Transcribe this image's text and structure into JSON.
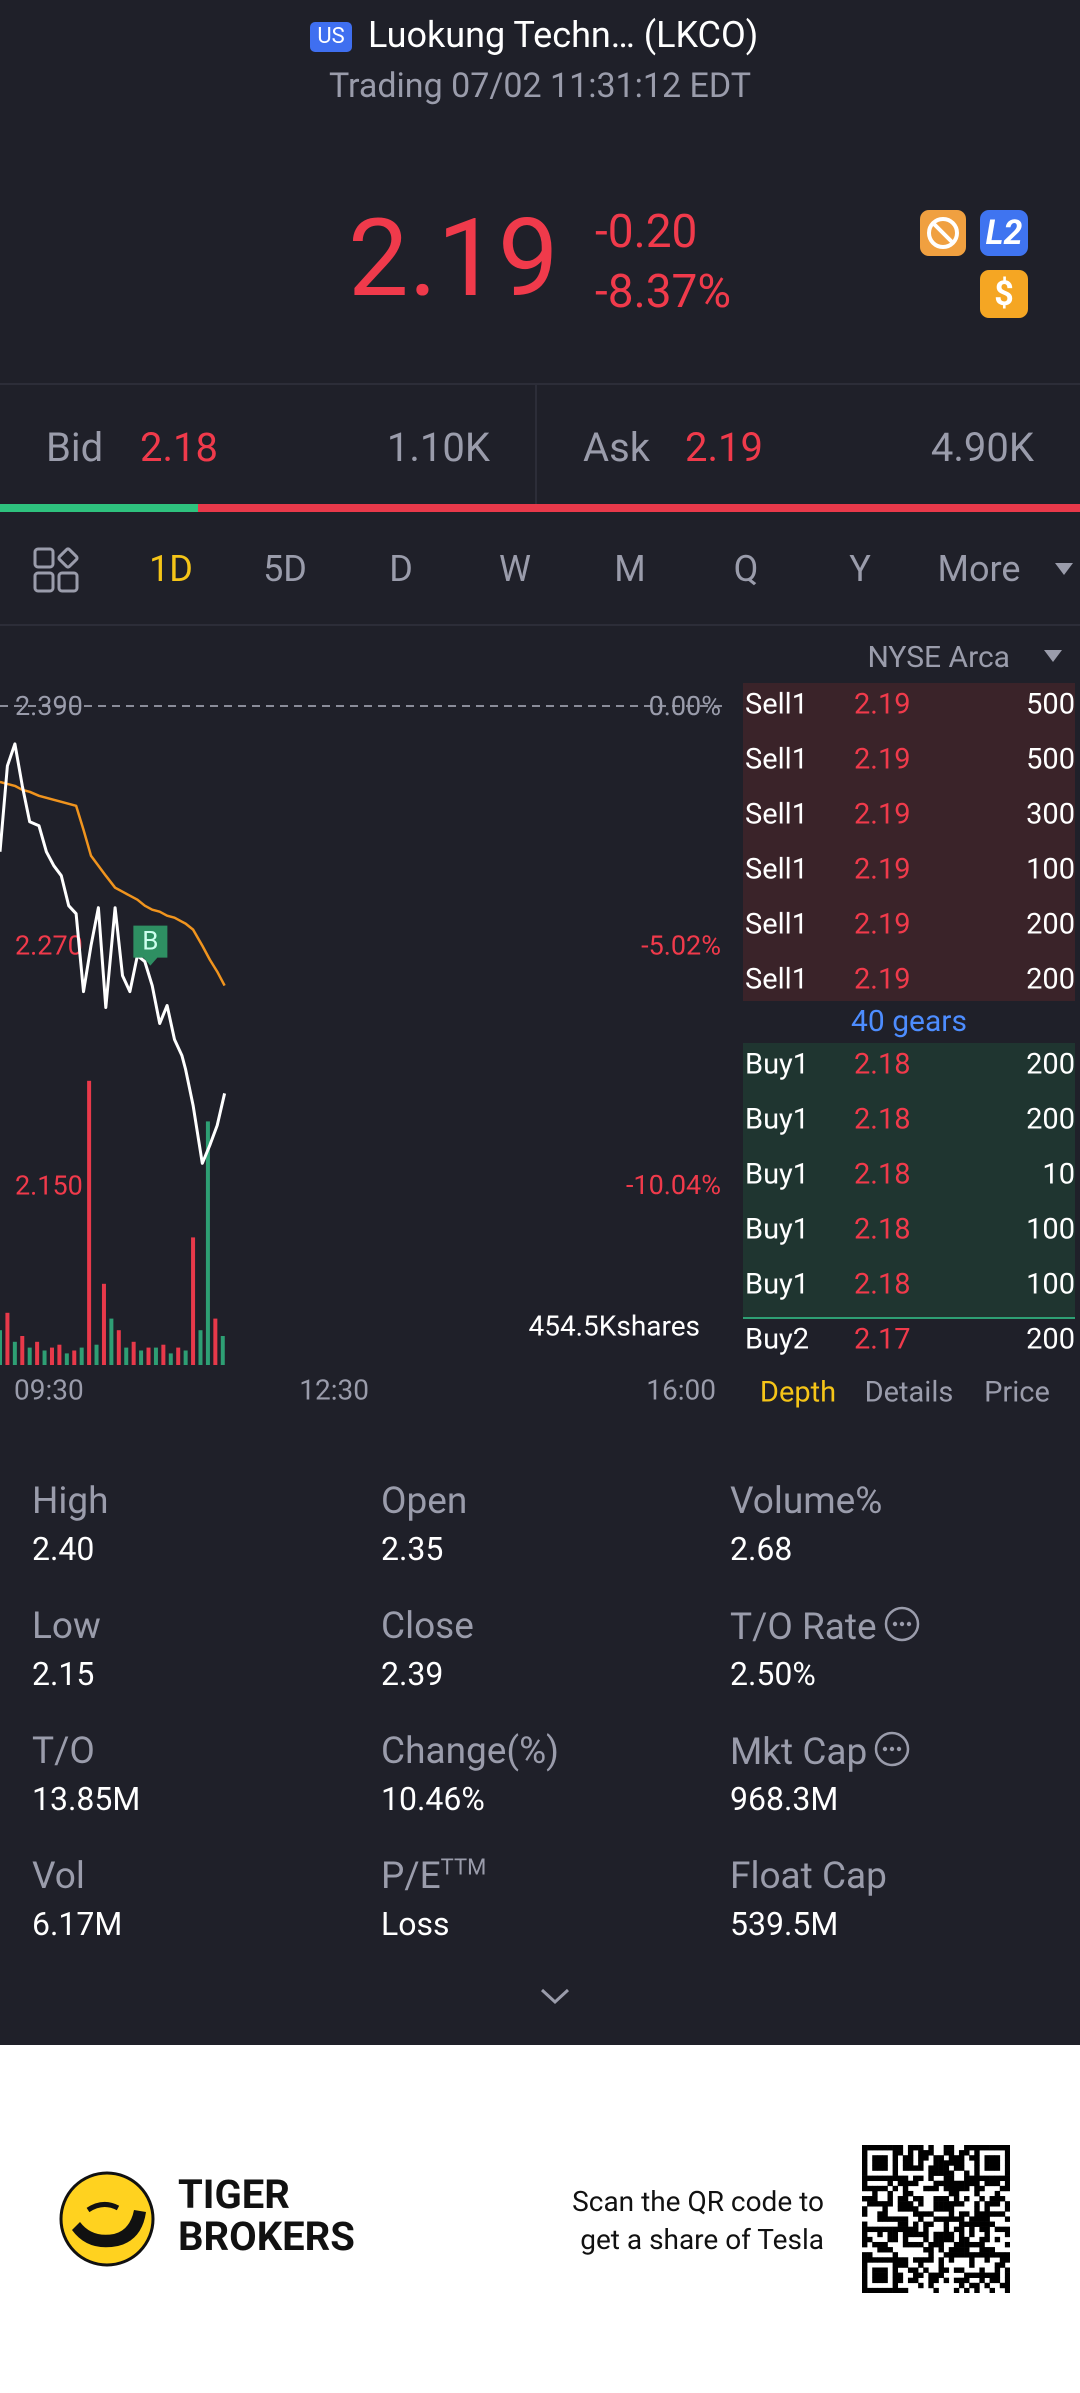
{
  "header": {
    "badge": "US",
    "title": "Luokung Techn… (LKCO)",
    "status": "Trading 07/02 11:31:12 EDT"
  },
  "quote": {
    "price": "2.19",
    "change": "-0.20",
    "change_pct": "-8.37%",
    "level_badge": "L2",
    "currency_badge": "$"
  },
  "bid_ask": {
    "bid_label": "Bid",
    "bid": "2.18",
    "bid_size": "1.10K",
    "ask_label": "Ask",
    "ask": "2.19",
    "ask_size": "4.90K"
  },
  "tabs": {
    "items": [
      "1D",
      "5D",
      "D",
      "W",
      "M",
      "Q",
      "Y",
      "More"
    ],
    "active": 0
  },
  "exchange": "NYSE Arca",
  "chart_data": {
    "type": "line",
    "x": [
      0,
      4,
      8,
      12,
      16,
      21,
      25,
      29,
      33,
      37,
      41,
      45,
      49,
      53,
      57,
      62,
      66,
      70,
      74,
      78,
      82,
      86,
      90,
      94,
      98,
      100,
      104,
      109,
      113,
      117,
      121
    ],
    "series": [
      {
        "color": "#ffffff",
        "values": [
          2.317,
          2.36,
          2.371,
          2.35,
          2.332,
          2.33,
          2.317,
          2.31,
          2.305,
          2.29,
          2.286,
          2.247,
          2.27,
          2.289,
          2.239,
          2.289,
          2.255,
          2.247,
          2.265,
          2.262,
          2.25,
          2.231,
          2.24,
          2.223,
          2.215,
          2.208,
          2.19,
          2.161,
          2.17,
          2.18,
          2.196
        ]
      },
      {
        "color": "#f0941e",
        "values": [
          2.352,
          2.351,
          2.35,
          2.348,
          2.347,
          2.345,
          2.344,
          2.343,
          2.342,
          2.341,
          2.34,
          2.328,
          2.315,
          2.31,
          2.305,
          2.299,
          2.297,
          2.295,
          2.293,
          2.29,
          2.288,
          2.287,
          2.285,
          2.284,
          2.282,
          2.281,
          2.278,
          2.27,
          2.263,
          2.257,
          2.25
        ]
      }
    ],
    "xlim": [
      0,
      390
    ],
    "xticks": [
      {
        "value": 0,
        "label": "09:30"
      },
      {
        "value": 180,
        "label": "12:30"
      },
      {
        "value": 390,
        "label": "16:00"
      }
    ],
    "ylim": [
      2.06,
      2.4
    ],
    "yticks": [
      {
        "value": 2.39,
        "label": "2.390"
      },
      {
        "value": 2.27,
        "label": "2.270"
      },
      {
        "value": 2.15,
        "label": "2.150"
      }
    ],
    "y2lim": [
      -13.81,
      0.42
    ],
    "y2ticks": [
      {
        "value": 0,
        "label": "0.00%"
      },
      {
        "value": -5.02,
        "label": "-5.02%"
      },
      {
        "value": -10.04,
        "label": "-10.04%"
      }
    ],
    "markers": [
      {
        "label": "B",
        "x": 81,
        "y": 2.27
      }
    ],
    "volume": {
      "label": "454.5Kshares",
      "ylim": [
        0,
        500000
      ],
      "x": [
        0,
        4,
        8,
        12,
        16,
        20,
        24,
        28,
        32,
        36,
        40,
        44,
        48,
        52,
        56,
        60,
        64,
        68,
        72,
        76,
        80,
        84,
        88,
        92,
        96,
        100,
        104,
        108,
        112,
        116,
        120
      ],
      "series": [
        {
          "color": "#2e9f74",
          "values": [
            60000,
            null,
            40000,
            null,
            30000,
            null,
            25000,
            null,
            null,
            20000,
            null,
            30000,
            null,
            35000,
            null,
            80000,
            null,
            30000,
            null,
            25000,
            null,
            30000,
            null,
            20000,
            null,
            25000,
            null,
            60000,
            420000,
            null,
            50000
          ]
        },
        {
          "color": "#e8394a",
          "values": [
            null,
            90000,
            null,
            50000,
            null,
            40000,
            null,
            30000,
            35000,
            null,
            25000,
            null,
            490000,
            null,
            140000,
            null,
            60000,
            null,
            40000,
            null,
            30000,
            null,
            35000,
            null,
            30000,
            null,
            220000,
            null,
            null,
            80000,
            null
          ]
        }
      ]
    }
  },
  "order_book": {
    "sells": [
      [
        "Sell1",
        "2.19",
        "500"
      ],
      [
        "Sell1",
        "2.19",
        "500"
      ],
      [
        "Sell1",
        "2.19",
        "300"
      ],
      [
        "Sell1",
        "2.19",
        "100"
      ],
      [
        "Sell1",
        "2.19",
        "200"
      ],
      [
        "Sell1",
        "2.19",
        "200"
      ]
    ],
    "gears": "40 gears",
    "buys": [
      [
        "Buy1",
        "2.18",
        "200"
      ],
      [
        "Buy1",
        "2.18",
        "200"
      ],
      [
        "Buy1",
        "2.18",
        "10"
      ],
      [
        "Buy1",
        "2.18",
        "100"
      ],
      [
        "Buy1",
        "2.18",
        "100"
      ],
      [
        "Buy2",
        "2.17",
        "200"
      ]
    ],
    "tabs": [
      "Depth",
      "Details",
      "Price"
    ]
  },
  "stats": [
    {
      "label": "High",
      "value": "2.40"
    },
    {
      "label": "Open",
      "value": "2.35"
    },
    {
      "label": "Volume%",
      "value": "2.68"
    },
    {
      "label": "Low",
      "value": "2.15"
    },
    {
      "label": "Close",
      "value": "2.39"
    },
    {
      "label": "T/O Rate",
      "value": "2.50%",
      "info": true
    },
    {
      "label": "T/O",
      "value": "13.85M"
    },
    {
      "label": "Change(%)",
      "value": "10.46%"
    },
    {
      "label": "Mkt Cap",
      "value": "968.3M",
      "info": true
    },
    {
      "label": "Vol",
      "value": "6.17M"
    },
    {
      "label": "P/E",
      "sup": "TTM",
      "value": "Loss"
    },
    {
      "label": "Float Cap",
      "value": "539.5M"
    }
  ],
  "footer": {
    "brand": [
      "TIGER",
      "BROKERS"
    ],
    "promo": [
      "Scan the QR code to",
      "get a share of Tesla"
    ]
  }
}
